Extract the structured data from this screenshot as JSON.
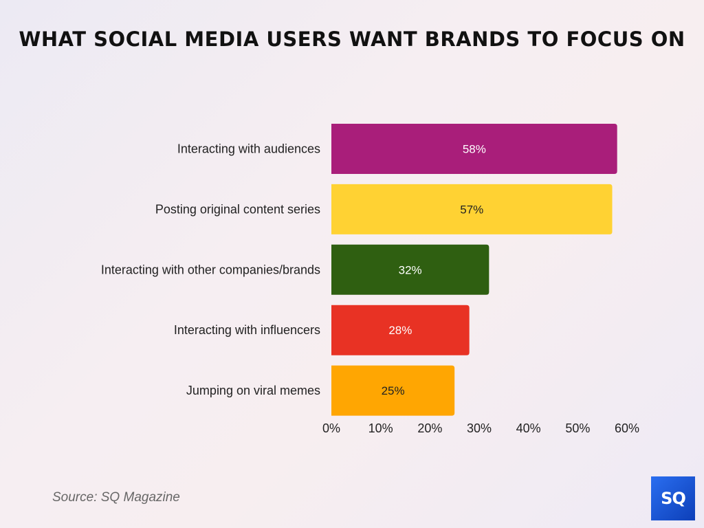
{
  "chart_data": {
    "type": "bar",
    "orientation": "horizontal",
    "title": "WHAT SOCIAL MEDIA USERS WANT BRANDS TO FOCUS ON",
    "categories": [
      "Interacting with audiences",
      "Posting original content series",
      "Interacting with other companies/brands",
      "Interacting with influencers",
      "Jumping on viral memes"
    ],
    "values": [
      58,
      57,
      32,
      28,
      25
    ],
    "data_labels": [
      "58%",
      "57%",
      "32%",
      "28%",
      "25%"
    ],
    "colors": [
      "#A91E7A",
      "#FFD233",
      "#2F5F11",
      "#E83224",
      "#FFA602"
    ],
    "label_colors": [
      "#ffffff",
      "#222222",
      "#ffffff",
      "#ffffff",
      "#222222"
    ],
    "xlim": [
      0,
      60
    ],
    "x_ticks": [
      "0%",
      "10%",
      "20%",
      "30%",
      "40%",
      "50%",
      "60%"
    ],
    "grid": false,
    "legend": "none"
  },
  "source": "Source: SQ Magazine",
  "logo_text": "SQ"
}
